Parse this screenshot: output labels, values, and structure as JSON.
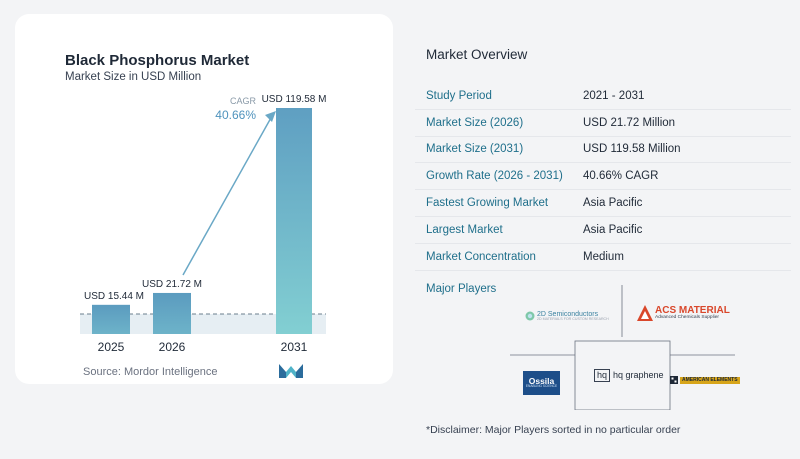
{
  "chart_data": {
    "type": "bar",
    "title": "Black Phosphorus Market",
    "subtitle": "Market Size in USD Million",
    "categories": [
      "2025",
      "2026",
      "2031"
    ],
    "values": [
      15.44,
      21.72,
      119.58
    ],
    "value_labels": [
      "USD 15.44 M",
      "USD 21.72 M",
      "USD 119.58 M"
    ],
    "cagr_label": "CAGR",
    "cagr_value": "40.66%",
    "colors": [
      "#5b9bbf",
      "#5b9bbf",
      "#79c7cf"
    ],
    "ylim": [
      0,
      125
    ]
  },
  "source": "Source:  Mordor Intelligence",
  "overview": {
    "title": "Market Overview",
    "rows": [
      {
        "key": "Study Period",
        "value": "2021 - 2031"
      },
      {
        "key": "Market Size (2026)",
        "value": "USD 21.72 Million"
      },
      {
        "key": "Market Size (2031)",
        "value": "USD 119.58 Million"
      },
      {
        "key": "Growth Rate (2026 - 2031)",
        "value": "40.66% CAGR"
      },
      {
        "key": "Fastest Growing Market",
        "value": "Asia Pacific"
      },
      {
        "key": "Largest Market",
        "value": "Asia Pacific"
      },
      {
        "key": "Market Concentration",
        "value": "Medium"
      }
    ]
  },
  "players": {
    "title": "Major Players",
    "items": [
      {
        "name": "2D Semiconductors",
        "sub": "2D MATERIALS FOR CUSTOM RESEARCH"
      },
      {
        "name": "ACS MATERIAL",
        "sub": "Advanced Chemicals Supplier"
      },
      {
        "name": "Ossila",
        "sub": "ENABLING SCIENCE"
      },
      {
        "name": "hq graphene",
        "badge": "hq"
      },
      {
        "name": "AMERICAN ELEMENTS"
      }
    ]
  },
  "disclaimer": "*Disclaimer: Major Players sorted in no particular order"
}
